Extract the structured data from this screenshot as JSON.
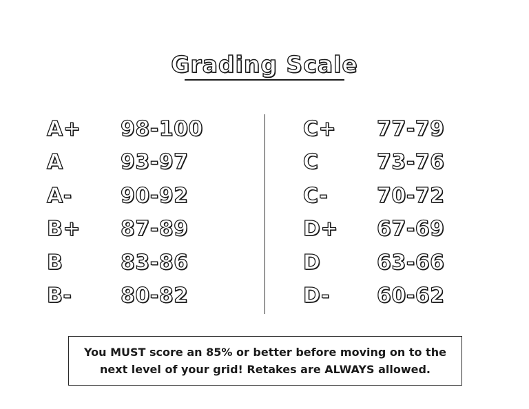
{
  "title": "Grading Scale",
  "scale": {
    "left": [
      {
        "grade": "A+",
        "range": "98-100"
      },
      {
        "grade": "A",
        "range": "93-97"
      },
      {
        "grade": "A-",
        "range": "90-92"
      },
      {
        "grade": "B+",
        "range": "87-89"
      },
      {
        "grade": "B",
        "range": "83-86"
      },
      {
        "grade": "B-",
        "range": "80-82"
      }
    ],
    "right": [
      {
        "grade": "C+",
        "range": "77-79"
      },
      {
        "grade": "C",
        "range": "73-76"
      },
      {
        "grade": "C-",
        "range": "70-72"
      },
      {
        "grade": "D+",
        "range": "67-69"
      },
      {
        "grade": "D",
        "range": "63-66"
      },
      {
        "grade": "D-",
        "range": "60-62"
      }
    ]
  },
  "note": {
    "line1": "You MUST score an 85% or better before moving on to the",
    "line2": "next level of your grid!  Retakes are ALWAYS allowed."
  }
}
